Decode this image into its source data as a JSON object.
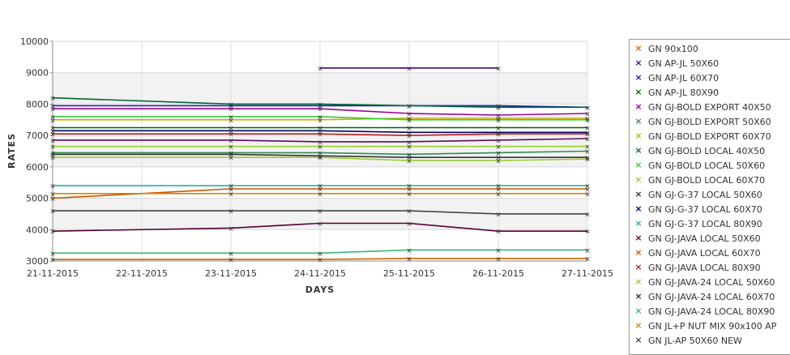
{
  "chart_data": {
    "type": "line",
    "xlabel": "DAYS",
    "ylabel": "RATES",
    "x": [
      "21-11-2015",
      "22-11-2015",
      "23-11-2015",
      "24-11-2015",
      "25-11-2015",
      "26-11-2015",
      "27-11-2015"
    ],
    "ylim": [
      3000,
      10000
    ],
    "yticks": [
      3000,
      4000,
      5000,
      6000,
      7000,
      8000,
      9000,
      10000
    ],
    "grid": true,
    "legend_position": "right",
    "series": [
      {
        "name": "GN 90x100",
        "color": "#cc6600",
        "values": [
          3050,
          null,
          3050,
          3050,
          3080,
          3080,
          3080
        ]
      },
      {
        "name": "GN AP-JL 50X60",
        "color": "#4b0082",
        "values": [
          null,
          null,
          null,
          9150,
          9150,
          9150,
          null
        ]
      },
      {
        "name": "GN AP-JL 60X70",
        "color": "#1a1acc",
        "values": [
          7950,
          null,
          7950,
          7950,
          7950,
          7950,
          7900
        ]
      },
      {
        "name": "GN AP-JL 80X90",
        "color": "#006600",
        "values": [
          7250,
          null,
          7250,
          7250,
          7250,
          7250,
          7250
        ]
      },
      {
        "name": "GN GJ-BOLD EXPORT 40X50",
        "color": "#990099",
        "values": [
          7850,
          null,
          7850,
          7850,
          7700,
          7650,
          7700
        ]
      },
      {
        "name": "GN GJ-BOLD EXPORT 50X60",
        "color": "#2e8b57",
        "values": [
          6450,
          null,
          6450,
          6450,
          6400,
          6450,
          6500
        ]
      },
      {
        "name": "GN GJ-BOLD EXPORT 60X70",
        "color": "#ccaa00",
        "values": [
          7500,
          null,
          7500,
          7500,
          7550,
          7550,
          7550
        ]
      },
      {
        "name": "GN GJ-BOLD LOCAL 40X50",
        "color": "#006633",
        "values": [
          8200,
          null,
          8000,
          8000,
          7950,
          7900,
          7900
        ]
      },
      {
        "name": "GN GJ-BOLD LOCAL 50X60",
        "color": "#33cc33",
        "values": [
          7600,
          null,
          7600,
          7600,
          7500,
          7500,
          7500
        ]
      },
      {
        "name": "GN GJ-BOLD LOCAL 60X70",
        "color": "#99cc33",
        "values": [
          6300,
          null,
          6300,
          6300,
          6200,
          6200,
          6250
        ]
      },
      {
        "name": "GN GJ-G-37 LOCAL 50X60",
        "color": "#333333",
        "values": [
          6400,
          null,
          6400,
          6350,
          6300,
          6300,
          6300
        ]
      },
      {
        "name": "GN GJ-G-37 LOCAL 60X70",
        "color": "#000066",
        "values": [
          7150,
          null,
          7150,
          7150,
          7100,
          7100,
          7100
        ]
      },
      {
        "name": "GN GJ-G-37 LOCAL 80X90",
        "color": "#20b2aa",
        "values": [
          5400,
          null,
          5400,
          5400,
          5400,
          5400,
          5400
        ]
      },
      {
        "name": "GN GJ-JAVA LOCAL 50X60",
        "color": "#550033",
        "values": [
          3950,
          null,
          4050,
          4200,
          4200,
          3950,
          3950
        ]
      },
      {
        "name": "GN GJ-JAVA LOCAL 60X70",
        "color": "#cc5500",
        "values": [
          5000,
          null,
          5300,
          5300,
          5300,
          5300,
          5300
        ]
      },
      {
        "name": "GN GJ-JAVA LOCAL 80X90",
        "color": "#b22222",
        "values": [
          7050,
          null,
          7050,
          7050,
          7000,
          7050,
          7050
        ]
      },
      {
        "name": "GN GJ-JAVA-24 LOCAL 50X60",
        "color": "#9acd32",
        "values": [
          6650,
          null,
          6650,
          6650,
          6650,
          6650,
          6650
        ]
      },
      {
        "name": "GN GJ-JAVA-24 LOCAL 60X70",
        "color": "#5c0a5c",
        "values": [
          6850,
          null,
          6850,
          6800,
          6800,
          6850,
          6900
        ]
      },
      {
        "name": "GN GJ-JAVA-24 LOCAL 80X90",
        "color": "#3cb371",
        "values": [
          3250,
          null,
          3250,
          3250,
          3350,
          3350,
          3350
        ]
      },
      {
        "name": "GN JL+P NUT MIX 90x100 AP",
        "color": "#cc8800",
        "values": [
          5150,
          null,
          5150,
          5150,
          5150,
          5150,
          5150
        ]
      },
      {
        "name": "GN JL-AP 50X60 NEW",
        "color": "#444444",
        "values": [
          4600,
          null,
          4600,
          4600,
          4600,
          4500,
          4500
        ]
      }
    ],
    "legend_marker": "×"
  }
}
